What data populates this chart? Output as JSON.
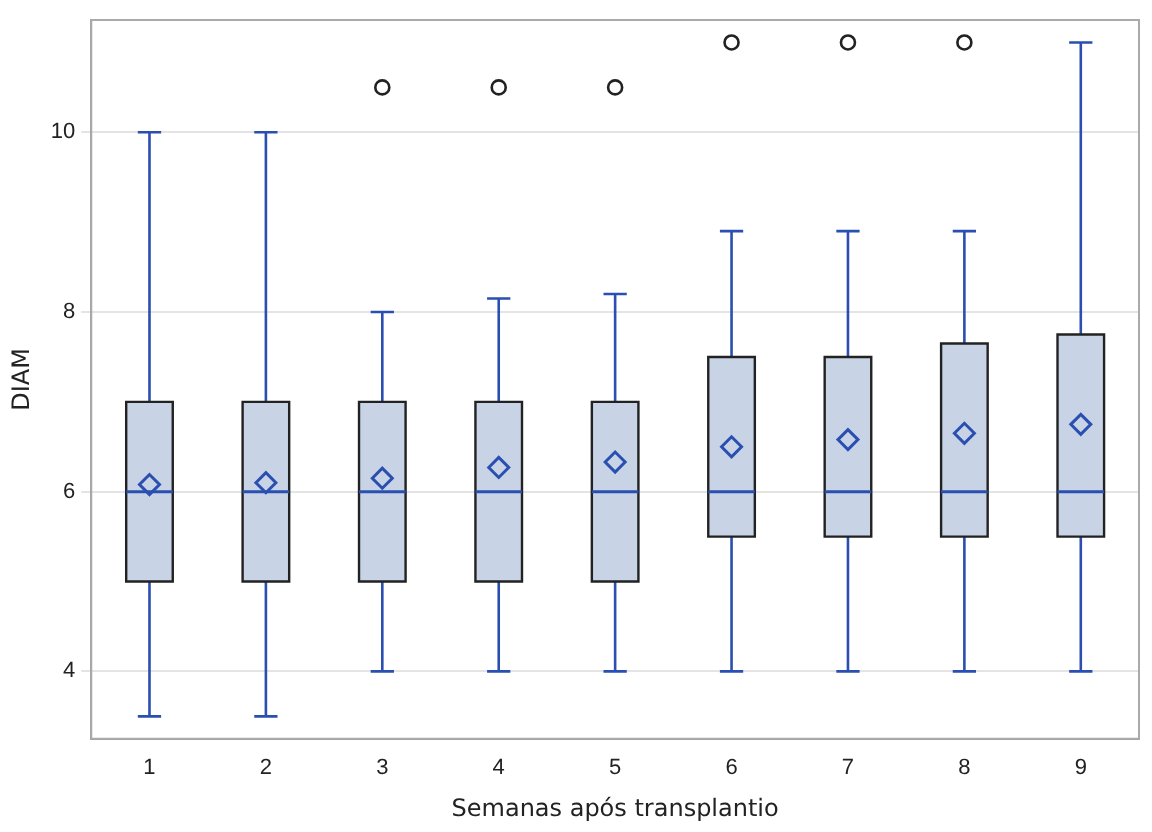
{
  "chart_data": {
    "type": "box",
    "xlabel": "Semanas após transplantio",
    "ylabel": "DIAM",
    "categories": [
      "1",
      "2",
      "3",
      "4",
      "5",
      "6",
      "7",
      "8",
      "9"
    ],
    "boxes": [
      {
        "low": 3.5,
        "q1": 5,
        "median": 6,
        "q3": 7,
        "high": 10,
        "mean": 6.08
      },
      {
        "low": 3.5,
        "q1": 5,
        "median": 6,
        "q3": 7,
        "high": 10,
        "mean": 6.1
      },
      {
        "low": 4,
        "q1": 5,
        "median": 6,
        "q3": 7,
        "high": 8,
        "mean": 6.15,
        "outliers": [
          10.5
        ]
      },
      {
        "low": 4,
        "q1": 5,
        "median": 6,
        "q3": 7,
        "high": 8.15,
        "mean": 6.27,
        "outliers": [
          10.5
        ]
      },
      {
        "low": 4,
        "q1": 5,
        "median": 6,
        "q3": 7,
        "high": 8.2,
        "mean": 6.33,
        "outliers": [
          10.5
        ]
      },
      {
        "low": 4,
        "q1": 5.5,
        "median": 6,
        "q3": 7.5,
        "high": 8.9,
        "mean": 6.5,
        "outliers": [
          11
        ]
      },
      {
        "low": 4,
        "q1": 5.5,
        "median": 6,
        "q3": 7.5,
        "high": 8.9,
        "mean": 6.58,
        "outliers": [
          11
        ]
      },
      {
        "low": 4,
        "q1": 5.5,
        "median": 6,
        "q3": 7.65,
        "high": 8.9,
        "mean": 6.65,
        "outliers": [
          11
        ]
      },
      {
        "low": 4,
        "q1": 5.5,
        "median": 6,
        "q3": 7.75,
        "high": 11,
        "mean": 6.75
      }
    ],
    "color": "#c8d4e6",
    "ylim": [
      3.25,
      11.25
    ],
    "yticks": [
      4,
      6,
      8,
      10
    ],
    "grid": "y",
    "legend": false,
    "marker": "diamond"
  }
}
